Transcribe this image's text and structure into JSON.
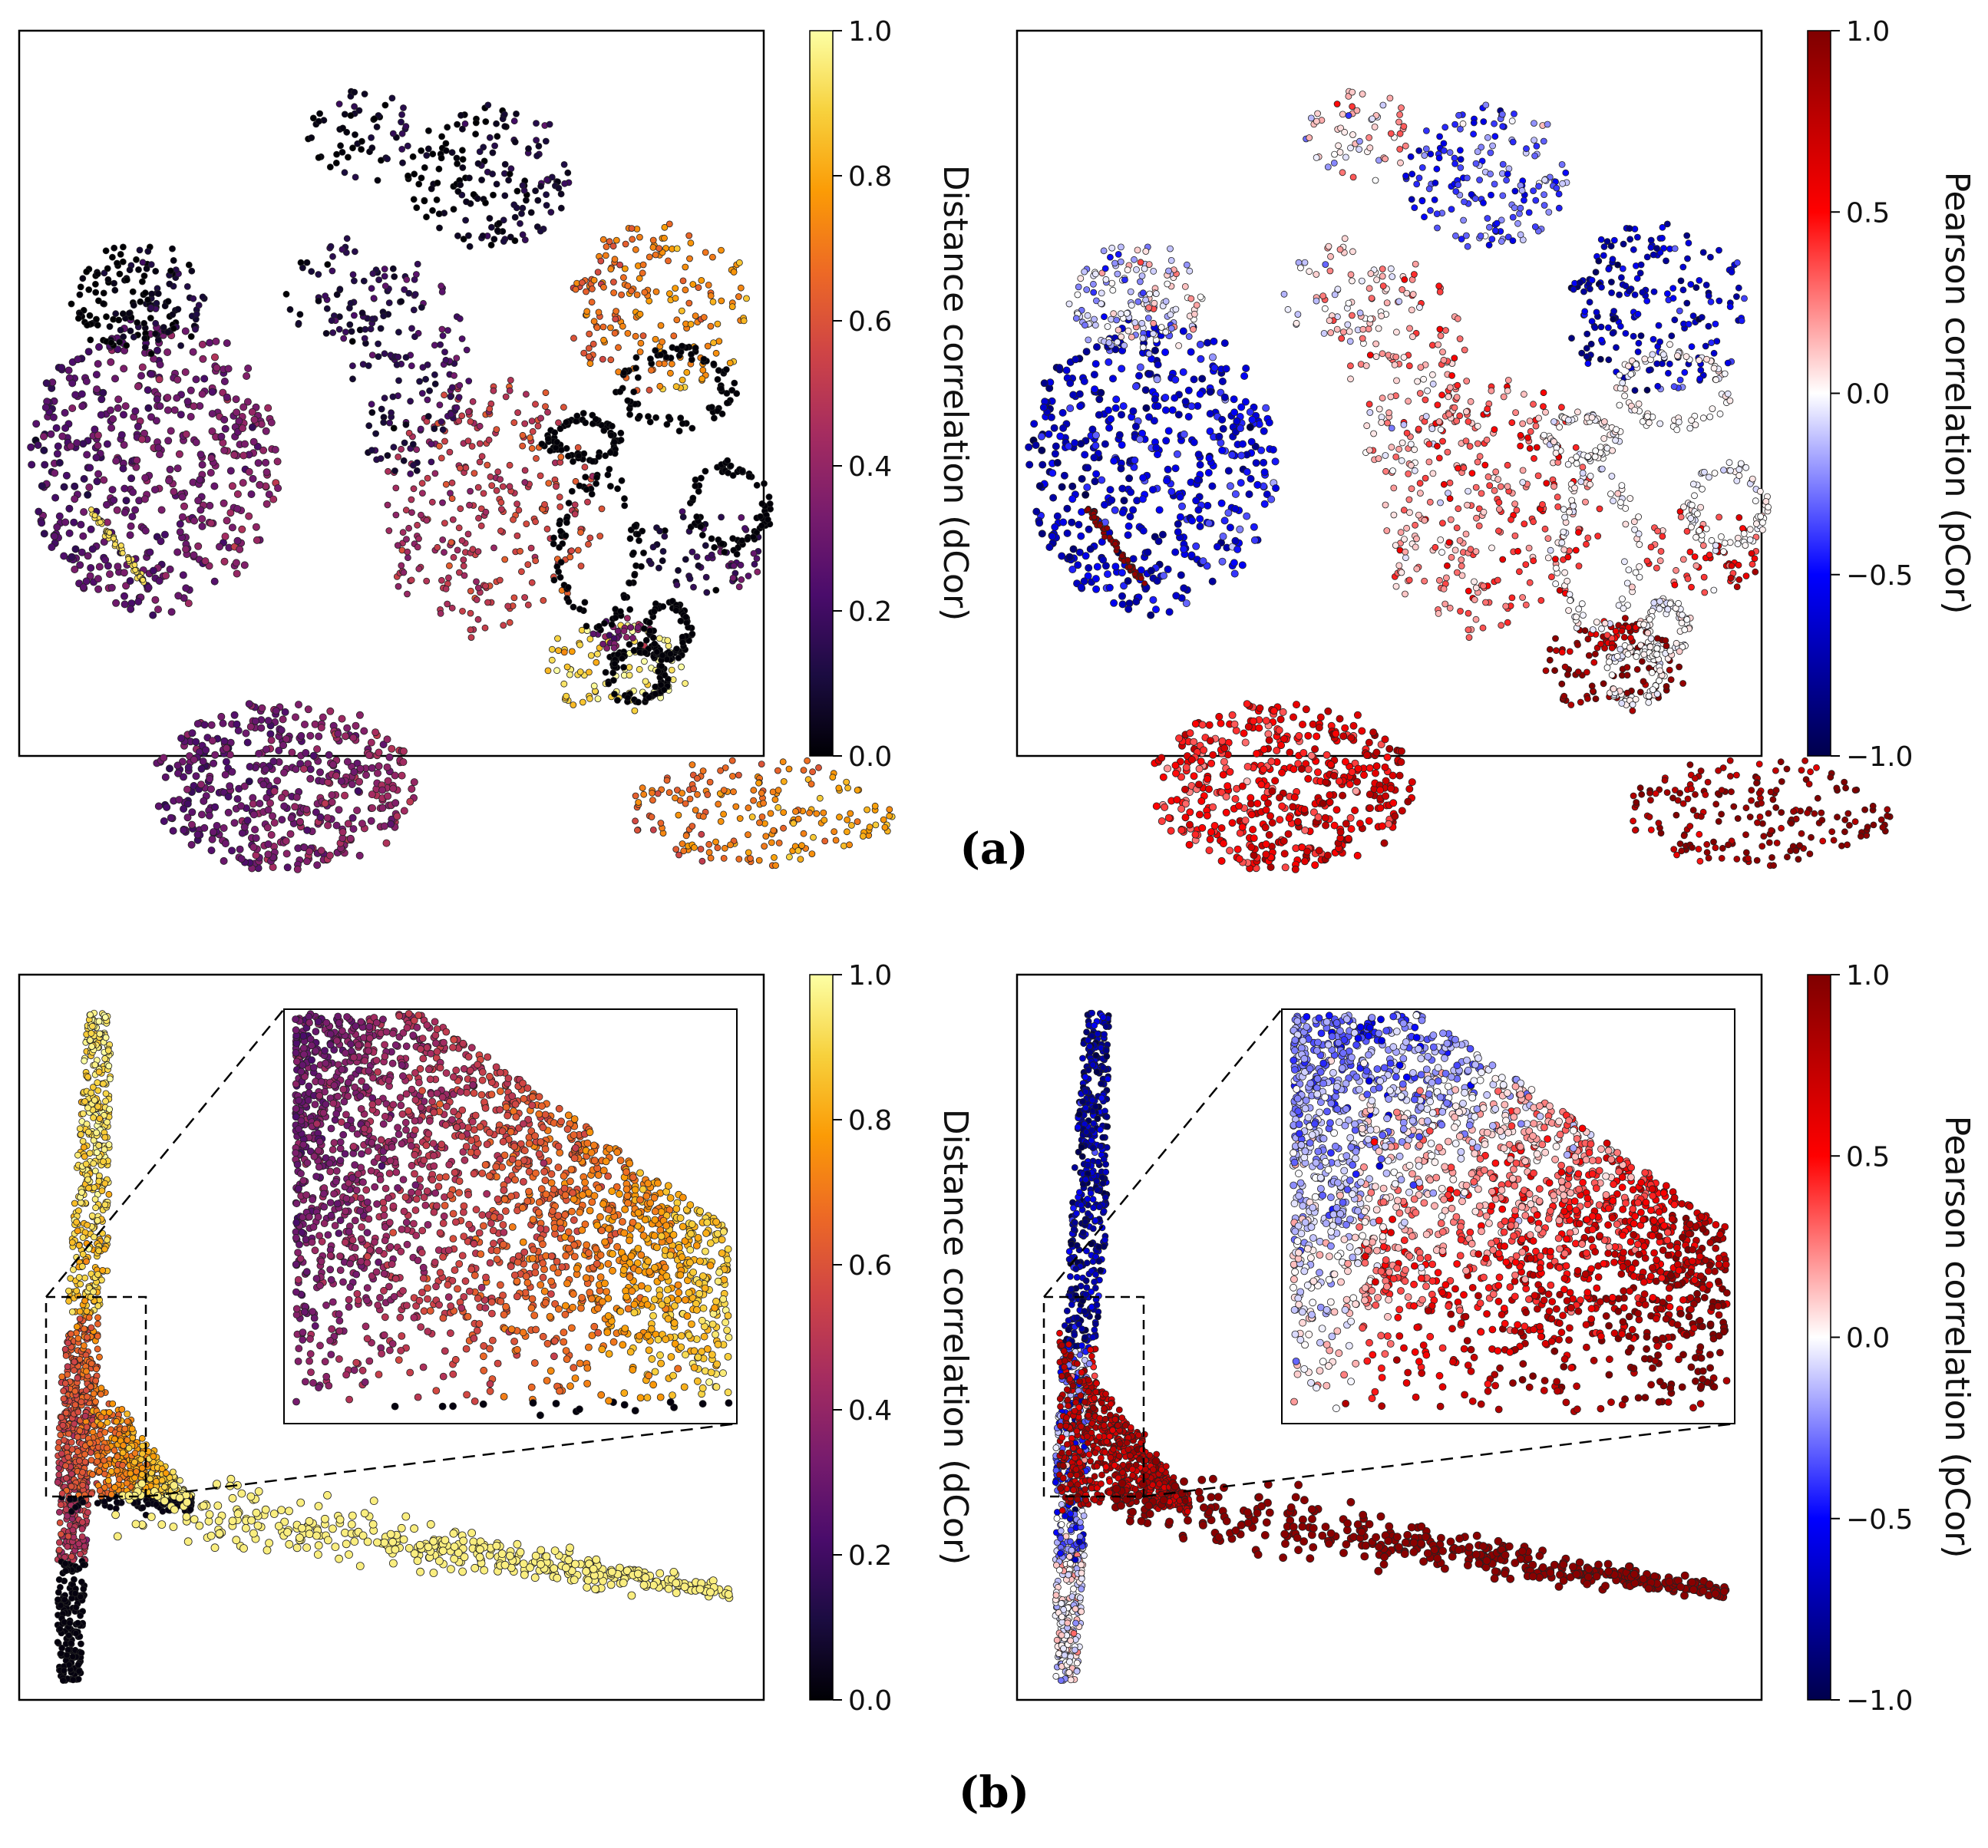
{
  "figure": {
    "caption_a": "(a)",
    "caption_b": "(b)"
  },
  "colormaps": {
    "inferno": [
      "#000004",
      "#1b0c41",
      "#4a0c6b",
      "#781c6d",
      "#a52c60",
      "#cf4446",
      "#ed6925",
      "#fb9b06",
      "#f7d13d",
      "#fcffa4"
    ],
    "seismic": [
      "#00004c",
      "#0000ff",
      "#ffffff",
      "#ff0000",
      "#7f0000"
    ]
  },
  "chart_data": [
    {
      "id": "a-left",
      "type": "scatter",
      "embedding": "t-SNE",
      "title": "",
      "xlabel": "",
      "ylabel": "",
      "ticks_shown": false,
      "color_variable": "dCor",
      "colormap": "inferno",
      "colorbar": {
        "label": "Distance correlation (dCor)",
        "range": [
          0.0,
          1.0
        ],
        "ticks": [
          "0.0",
          "0.2",
          "0.4",
          "0.6",
          "0.8",
          "1.0"
        ]
      }
    },
    {
      "id": "a-right",
      "type": "scatter",
      "embedding": "t-SNE",
      "title": "",
      "xlabel": "",
      "ylabel": "",
      "ticks_shown": false,
      "color_variable": "pCor",
      "colormap": "seismic",
      "colorbar": {
        "label": "Pearson correlation (pCor)",
        "range": [
          -1.0,
          1.0
        ],
        "ticks": [
          "−1.0",
          "−0.5",
          "0.0",
          "0.5",
          "1.0"
        ]
      }
    },
    {
      "id": "b-left",
      "type": "scatter",
      "title": "",
      "xlabel": "",
      "ylabel": "",
      "ticks_shown": false,
      "inset": "zoom of dashed region",
      "color_variable": "dCor",
      "colormap": "inferno",
      "colorbar": {
        "label": "Distance correlation (dCor)",
        "range": [
          0.0,
          1.0
        ],
        "ticks": [
          "0.0",
          "0.2",
          "0.4",
          "0.6",
          "0.8",
          "1.0"
        ]
      }
    },
    {
      "id": "b-right",
      "type": "scatter",
      "title": "",
      "xlabel": "",
      "ylabel": "",
      "ticks_shown": false,
      "inset": "zoom of dashed region",
      "color_variable": "pCor",
      "colormap": "seismic",
      "colorbar": {
        "label": "Pearson correlation (pCor)",
        "range": [
          -1.0,
          1.0
        ],
        "ticks": [
          "−1.0",
          "−0.5",
          "0.0",
          "0.5",
          "1.0"
        ]
      }
    }
  ]
}
